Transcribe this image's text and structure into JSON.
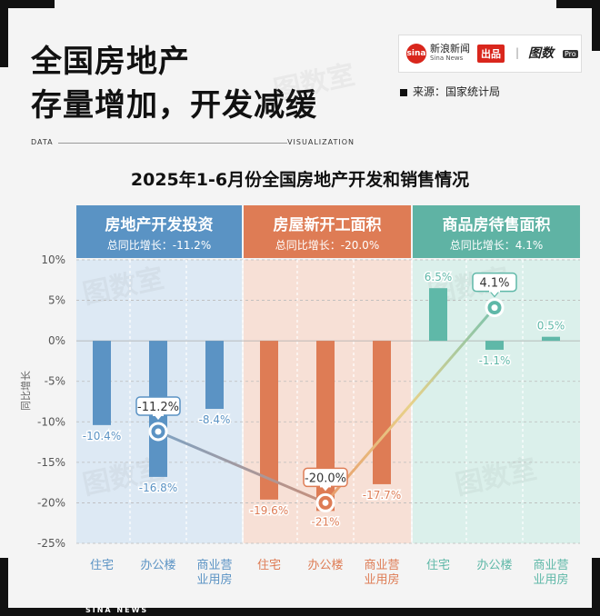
{
  "headline": {
    "line1": "全国房地产",
    "line2": "存量增加，开发减缓"
  },
  "brand": {
    "logo": "sina",
    "name": "新浪新闻",
    "sub": "Sina News",
    "tag": "出品",
    "sep": "|",
    "tushu": "图数",
    "pro": "Pro"
  },
  "source": "来源：国家统计局",
  "data_label": "DATA",
  "viz_label": "VISUALIZATION",
  "bottom_label": "SINA NEWS",
  "watermark": "图数室",
  "panels": [
    {
      "title": "房地产开发投资",
      "subtitle": "总同比增长：-11.2%"
    },
    {
      "title": "房屋新开工面积",
      "subtitle": "总同比增长：-20.0%"
    },
    {
      "title": "商品房待售面积",
      "subtitle": "总同比增长：4.1%"
    }
  ],
  "colors": {
    "blue": "#5b93c4",
    "blue_bg": "#dde9f4",
    "blue_head": "#5a93c4",
    "orange": "#de7c55",
    "orange_bg": "#f7e0d6",
    "orange_head": "#de7c55",
    "teal": "#5fb8a8",
    "teal_bg": "#dbf0eb",
    "teal_head": "#5fb3a4"
  },
  "chart_data": {
    "type": "bar",
    "title": "2025年1-6月份全国房地产开发和销售情况",
    "ylabel": "同比增长",
    "ylim": [
      -25,
      10
    ],
    "yticks": [
      10,
      5,
      0,
      -5,
      -10,
      -15,
      -20,
      -25
    ],
    "ytick_labels": [
      "10%",
      "5%",
      "0%",
      "-5%",
      "-10%",
      "-15%",
      "-20%",
      "-25%"
    ],
    "grid": true,
    "groups": [
      {
        "name": "房地产开发投资",
        "categories": [
          "住宅",
          "办公楼",
          "商业营|业用房"
        ],
        "values": [
          -10.4,
          -16.8,
          -8.4
        ],
        "labels": [
          "-10.4%",
          "-16.8%",
          "-8.4%"
        ],
        "total": -11.2,
        "total_label": "-11.2%"
      },
      {
        "name": "房屋新开工面积",
        "categories": [
          "住宅",
          "办公楼",
          "商业营|业用房"
        ],
        "values": [
          -19.6,
          -21,
          -17.7
        ],
        "labels": [
          "-19.6%",
          "-21%",
          "-17.7%"
        ],
        "total": -20.0,
        "total_label": "-20.0%"
      },
      {
        "name": "商品房待售面积",
        "categories": [
          "住宅",
          "办公楼",
          "商业营|业用房"
        ],
        "values": [
          6.5,
          -1.1,
          0.5
        ],
        "labels": [
          "6.5%",
          "-1.1%",
          "0.5%"
        ],
        "total": 4.1,
        "total_label": "4.1%"
      }
    ]
  }
}
